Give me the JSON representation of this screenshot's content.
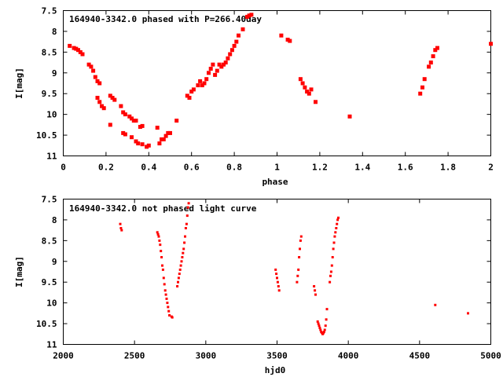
{
  "chart_data": [
    {
      "type": "scatter",
      "title": "164940-3342.0 phased with P=266.40day",
      "xlabel": "phase",
      "ylabel": "I[mag]",
      "xlim": [
        0,
        2
      ],
      "ylim": [
        7.5,
        11
      ],
      "y_inverted": true,
      "grid": false,
      "xticks": [
        "0",
        "0.2",
        "0.4",
        "0.6",
        "0.8",
        "1",
        "1.2",
        "1.4",
        "1.6",
        "1.8",
        "2"
      ],
      "yticks": [
        "7.5",
        "8",
        "8.5",
        "9",
        "9.5",
        "10",
        "10.5",
        "11"
      ],
      "marker_color": "#ff0000",
      "series": [
        {
          "points": [
            [
              0.03,
              8.35
            ],
            [
              0.05,
              8.4
            ],
            [
              0.06,
              8.42
            ],
            [
              0.07,
              8.45
            ],
            [
              0.08,
              8.5
            ],
            [
              0.09,
              8.55
            ],
            [
              0.12,
              8.8
            ],
            [
              0.13,
              8.85
            ],
            [
              0.14,
              8.95
            ],
            [
              0.15,
              9.1
            ],
            [
              0.16,
              9.2
            ],
            [
              0.17,
              9.25
            ],
            [
              0.16,
              9.6
            ],
            [
              0.17,
              9.7
            ],
            [
              0.18,
              9.8
            ],
            [
              0.19,
              9.85
            ],
            [
              0.22,
              9.55
            ],
            [
              0.23,
              9.6
            ],
            [
              0.24,
              9.65
            ],
            [
              0.22,
              10.25
            ],
            [
              0.27,
              9.8
            ],
            [
              0.28,
              9.95
            ],
            [
              0.29,
              10.0
            ],
            [
              0.31,
              10.05
            ],
            [
              0.32,
              10.1
            ],
            [
              0.33,
              10.15
            ],
            [
              0.34,
              10.15
            ],
            [
              0.28,
              10.45
            ],
            [
              0.29,
              10.48
            ],
            [
              0.32,
              10.55
            ],
            [
              0.34,
              10.65
            ],
            [
              0.35,
              10.7
            ],
            [
              0.36,
              10.3
            ],
            [
              0.37,
              10.28
            ],
            [
              0.37,
              10.72
            ],
            [
              0.39,
              10.78
            ],
            [
              0.4,
              10.75
            ],
            [
              0.44,
              10.32
            ],
            [
              0.45,
              10.7
            ],
            [
              0.46,
              10.6
            ],
            [
              0.47,
              10.6
            ],
            [
              0.48,
              10.52
            ],
            [
              0.49,
              10.45
            ],
            [
              0.5,
              10.45
            ],
            [
              0.53,
              10.15
            ],
            [
              0.58,
              9.55
            ],
            [
              0.59,
              9.6
            ],
            [
              0.6,
              9.45
            ],
            [
              0.61,
              9.4
            ],
            [
              0.63,
              9.3
            ],
            [
              0.64,
              9.2
            ],
            [
              0.65,
              9.3
            ],
            [
              0.66,
              9.25
            ],
            [
              0.67,
              9.15
            ],
            [
              0.68,
              9.0
            ],
            [
              0.69,
              8.9
            ],
            [
              0.7,
              8.8
            ],
            [
              0.71,
              9.05
            ],
            [
              0.72,
              8.95
            ],
            [
              0.73,
              8.8
            ],
            [
              0.74,
              8.85
            ],
            [
              0.75,
              8.8
            ],
            [
              0.76,
              8.75
            ],
            [
              0.77,
              8.65
            ],
            [
              0.78,
              8.55
            ],
            [
              0.79,
              8.45
            ],
            [
              0.8,
              8.35
            ],
            [
              0.81,
              8.25
            ],
            [
              0.82,
              8.1
            ],
            [
              0.84,
              7.95
            ],
            [
              0.86,
              7.65
            ],
            [
              0.87,
              7.62
            ],
            [
              0.88,
              7.6
            ],
            [
              1.02,
              8.1
            ],
            [
              1.05,
              8.2
            ],
            [
              1.06,
              8.23
            ],
            [
              1.11,
              9.15
            ],
            [
              1.12,
              9.25
            ],
            [
              1.13,
              9.35
            ],
            [
              1.14,
              9.45
            ],
            [
              1.15,
              9.5
            ],
            [
              1.16,
              9.4
            ],
            [
              1.18,
              9.7
            ],
            [
              1.34,
              10.05
            ],
            [
              1.67,
              9.5
            ],
            [
              1.68,
              9.35
            ],
            [
              1.69,
              9.15
            ],
            [
              1.71,
              8.85
            ],
            [
              1.72,
              8.75
            ],
            [
              1.73,
              8.6
            ],
            [
              1.74,
              8.45
            ],
            [
              1.75,
              8.4
            ],
            [
              2.0,
              8.3
            ]
          ]
        }
      ]
    },
    {
      "type": "scatter",
      "title": "164940-3342.0 not phased light curve",
      "xlabel": "hjd0",
      "ylabel": "I[mag]",
      "xlim": [
        2000,
        5000
      ],
      "ylim": [
        7.5,
        11
      ],
      "y_inverted": true,
      "grid": false,
      "xticks": [
        "2000",
        "2500",
        "3000",
        "3500",
        "4000",
        "4500",
        "5000"
      ],
      "yticks": [
        "7.5",
        "8",
        "8.5",
        "9",
        "9.5",
        "10",
        "10.5",
        "11"
      ],
      "marker_color": "#ff0000",
      "series": [
        {
          "points": [
            [
              2400,
              8.1
            ],
            [
              2405,
              8.2
            ],
            [
              2410,
              8.25
            ],
            [
              2660,
              8.3
            ],
            [
              2665,
              8.35
            ],
            [
              2670,
              8.4
            ],
            [
              2675,
              8.5
            ],
            [
              2680,
              8.6
            ],
            [
              2685,
              8.75
            ],
            [
              2690,
              8.9
            ],
            [
              2695,
              9.1
            ],
            [
              2700,
              9.2
            ],
            [
              2705,
              9.4
            ],
            [
              2710,
              9.55
            ],
            [
              2715,
              9.7
            ],
            [
              2720,
              9.8
            ],
            [
              2725,
              9.9
            ],
            [
              2730,
              10.0
            ],
            [
              2735,
              10.1
            ],
            [
              2740,
              10.2
            ],
            [
              2745,
              10.3
            ],
            [
              2760,
              10.33
            ],
            [
              2765,
              10.35
            ],
            [
              2800,
              9.6
            ],
            [
              2805,
              9.5
            ],
            [
              2810,
              9.4
            ],
            [
              2815,
              9.3
            ],
            [
              2820,
              9.2
            ],
            [
              2825,
              9.1
            ],
            [
              2830,
              9.0
            ],
            [
              2835,
              8.9
            ],
            [
              2840,
              8.8
            ],
            [
              2845,
              8.7
            ],
            [
              2850,
              8.55
            ],
            [
              2855,
              8.4
            ],
            [
              2860,
              8.2
            ],
            [
              2865,
              8.1
            ],
            [
              2870,
              7.9
            ],
            [
              2875,
              7.7
            ],
            [
              2880,
              7.6
            ],
            [
              3490,
              9.2
            ],
            [
              3495,
              9.3
            ],
            [
              3500,
              9.4
            ],
            [
              3505,
              9.5
            ],
            [
              3510,
              9.6
            ],
            [
              3515,
              9.7
            ],
            [
              3640,
              9.5
            ],
            [
              3645,
              9.35
            ],
            [
              3650,
              9.2
            ],
            [
              3655,
              8.9
            ],
            [
              3660,
              8.7
            ],
            [
              3665,
              8.5
            ],
            [
              3670,
              8.4
            ],
            [
              3760,
              9.6
            ],
            [
              3765,
              9.7
            ],
            [
              3770,
              9.8
            ],
            [
              3785,
              10.45
            ],
            [
              3790,
              10.5
            ],
            [
              3795,
              10.55
            ],
            [
              3800,
              10.6
            ],
            [
              3805,
              10.65
            ],
            [
              3810,
              10.7
            ],
            [
              3815,
              10.72
            ],
            [
              3820,
              10.75
            ],
            [
              3825,
              10.73
            ],
            [
              3830,
              10.7
            ],
            [
              3835,
              10.65
            ],
            [
              3840,
              10.55
            ],
            [
              3845,
              10.4
            ],
            [
              3850,
              10.15
            ],
            [
              3870,
              9.5
            ],
            [
              3875,
              9.35
            ],
            [
              3880,
              9.25
            ],
            [
              3885,
              9.1
            ],
            [
              3890,
              8.9
            ],
            [
              3895,
              8.7
            ],
            [
              3900,
              8.55
            ],
            [
              3905,
              8.4
            ],
            [
              3910,
              8.3
            ],
            [
              3915,
              8.2
            ],
            [
              3920,
              8.1
            ],
            [
              3925,
              8.0
            ],
            [
              3930,
              7.95
            ],
            [
              4610,
              10.05
            ],
            [
              4840,
              10.25
            ]
          ]
        }
      ]
    }
  ]
}
